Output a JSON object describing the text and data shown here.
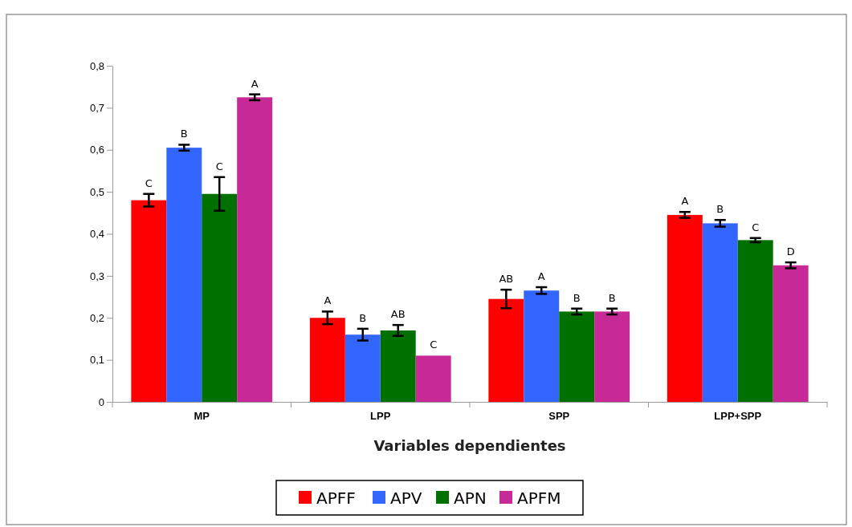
{
  "chart_data": {
    "type": "bar",
    "xlabel": "Variables dependientes",
    "categories": [
      "MP",
      "LPP",
      "SPP",
      "LPP+SPP"
    ],
    "series": [
      {
        "name": "APFF",
        "color": "#ff0000",
        "values": [
          0.48,
          0.2,
          0.245,
          0.445
        ],
        "errors": [
          0.015,
          0.015,
          0.022,
          0.007
        ],
        "value_labels": [
          "C",
          "A",
          "AB",
          "A"
        ]
      },
      {
        "name": "APV",
        "color": "#3366ff",
        "values": [
          0.605,
          0.16,
          0.265,
          0.425
        ],
        "errors": [
          0.007,
          0.014,
          0.008,
          0.008
        ],
        "value_labels": [
          "B",
          "B",
          "A",
          "B"
        ]
      },
      {
        "name": "APN",
        "color": "#007000",
        "values": [
          0.495,
          0.17,
          0.215,
          0.385
        ],
        "errors": [
          0.04,
          0.013,
          0.007,
          0.005
        ],
        "value_labels": [
          "C",
          "AB",
          "B",
          "C"
        ]
      },
      {
        "name": "APFM",
        "color": "#c72a96",
        "values": [
          0.725,
          0.11,
          0.215,
          0.325
        ],
        "errors": [
          0.007,
          null,
          0.007,
          0.007
        ],
        "value_labels": [
          "A",
          "C",
          "B",
          "D"
        ]
      }
    ],
    "ylim": [
      0,
      0.8
    ],
    "yticks": [
      0,
      {
        "value": 0.1,
        "label": "0,1"
      },
      {
        "value": 0.2,
        "label": "0,2"
      },
      {
        "value": 0.3,
        "label": "0,3"
      },
      {
        "value": 0.4,
        "label": "0,4"
      },
      {
        "value": 0.5,
        "label": "0,5"
      },
      {
        "value": 0.6,
        "label": "0,6"
      },
      {
        "value": 0.7,
        "label": "0,7"
      },
      {
        "value": 0.8,
        "label": "0,8"
      }
    ],
    "grid": false,
    "legend": "bottom"
  }
}
